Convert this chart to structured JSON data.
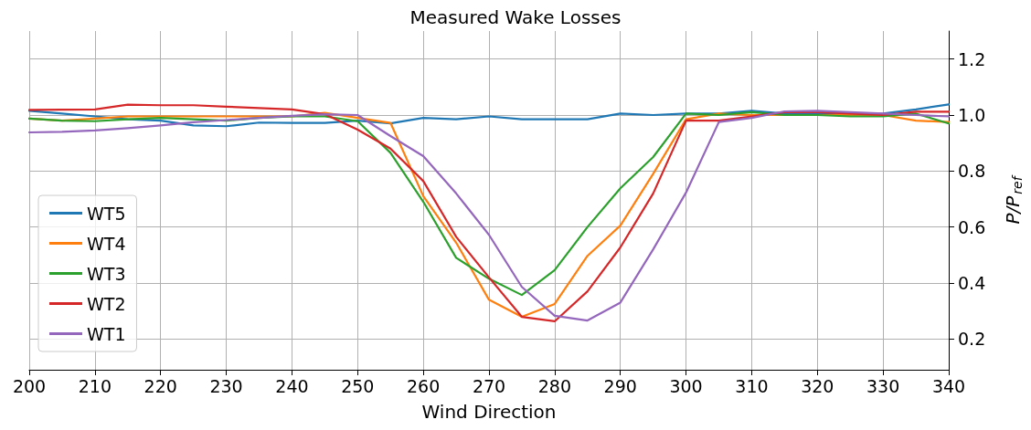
{
  "chart_data": {
    "type": "line",
    "title": "Measured Wake Losses",
    "xlabel": "Wind Direction",
    "ylabel": "P/P$_{ref}$",
    "x": [
      200,
      205,
      210,
      215,
      220,
      225,
      230,
      235,
      240,
      245,
      250,
      255,
      260,
      265,
      270,
      275,
      280,
      285,
      290,
      295,
      300,
      305,
      310,
      315,
      320,
      325,
      330,
      335,
      340
    ],
    "series": [
      {
        "name": "WT5",
        "color": "#1f77b4",
        "values": [
          1.015,
          1.005,
          0.995,
          0.985,
          0.98,
          0.963,
          0.96,
          0.973,
          0.972,
          0.972,
          0.98,
          0.97,
          0.99,
          0.985,
          0.995,
          0.985,
          0.985,
          0.985,
          1.005,
          1.0,
          1.005,
          1.005,
          1.015,
          1.005,
          1.005,
          1.0,
          1.005,
          1.02,
          1.038
        ]
      },
      {
        "name": "WT4",
        "color": "#ff7f0e",
        "values": [
          0.987,
          0.98,
          0.987,
          0.995,
          0.995,
          0.995,
          0.995,
          0.995,
          0.995,
          1.008,
          0.99,
          0.972,
          0.71,
          0.544,
          0.34,
          0.279,
          0.325,
          0.497,
          0.605,
          0.79,
          0.985,
          1.005,
          1.0,
          1.0,
          1.0,
          1.0,
          1.0,
          0.98,
          0.975
        ]
      },
      {
        "name": "WT3",
        "color": "#2ca02c",
        "values": [
          0.987,
          0.98,
          0.978,
          0.985,
          0.99,
          0.985,
          0.98,
          0.99,
          0.995,
          0.995,
          0.978,
          0.865,
          0.69,
          0.49,
          0.415,
          0.357,
          0.446,
          0.6,
          0.738,
          0.85,
          1.005,
          1.0,
          1.01,
          1.0,
          1.0,
          0.995,
          0.995,
          1.005,
          0.97
        ]
      },
      {
        "name": "WT2",
        "color": "#d62728",
        "values": [
          1.018,
          1.019,
          1.02,
          1.037,
          1.035,
          1.035,
          1.03,
          1.025,
          1.02,
          1.003,
          0.948,
          0.88,
          0.764,
          0.565,
          0.42,
          0.279,
          0.263,
          0.37,
          0.527,
          0.72,
          0.98,
          0.98,
          0.995,
          1.01,
          1.01,
          1.005,
          1.0,
          1.012,
          1.012
        ]
      },
      {
        "name": "WT1",
        "color": "#9467bd",
        "values": [
          0.938,
          0.94,
          0.945,
          0.953,
          0.963,
          0.974,
          0.982,
          0.99,
          0.997,
          1.003,
          1.0,
          0.925,
          0.853,
          0.72,
          0.572,
          0.386,
          0.283,
          0.266,
          0.33,
          0.52,
          0.723,
          0.975,
          0.99,
          1.013,
          1.015,
          1.01,
          1.005,
          1.0,
          0.995
        ]
      }
    ],
    "xlim": [
      200,
      340
    ],
    "xticks": [
      200,
      210,
      220,
      230,
      240,
      250,
      260,
      270,
      280,
      290,
      300,
      310,
      320,
      330,
      340
    ],
    "ylim": [
      0.09,
      1.3
    ],
    "yticks": [
      0.2,
      0.4,
      0.6,
      0.8,
      {
        "value": 1,
        "label": "1.0"
      },
      1.2
    ],
    "grid": true,
    "legend": "bottom left",
    "marker": "none",
    "line_style": "solid"
  }
}
